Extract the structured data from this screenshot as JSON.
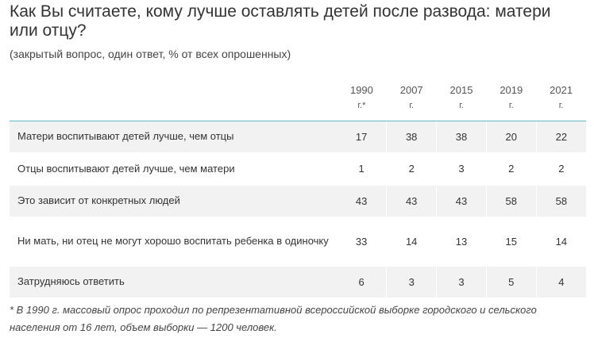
{
  "title": "Как Вы считаете, кому лучше оставлять детей после развода: матери или отцу?",
  "subtitle": "(закрытый вопрос, один ответ, % от всех опрошенных)",
  "columns": [
    {
      "year": "1990",
      "suffix": "г.*"
    },
    {
      "year": "2007",
      "suffix": "г."
    },
    {
      "year": "2015",
      "suffix": "г."
    },
    {
      "year": "2019",
      "suffix": "г."
    },
    {
      "year": "2021",
      "suffix": "г."
    }
  ],
  "rows": [
    {
      "label": "Матери воспитывают детей лучше, чем отцы",
      "values": [
        "17",
        "38",
        "38",
        "20",
        "22"
      ]
    },
    {
      "label": "Отцы воспитывают детей лучше, чем матери",
      "values": [
        "1",
        "2",
        "3",
        "2",
        "2"
      ]
    },
    {
      "label": "Это зависит от конкретных людей",
      "values": [
        "43",
        "43",
        "43",
        "58",
        "58"
      ]
    },
    {
      "label": "Ни мать, ни отец не могут хорошо воспитать ребенка в одиночку",
      "values": [
        "33",
        "14",
        "13",
        "15",
        "14"
      ]
    },
    {
      "label": "Затрудняюсь ответить",
      "values": [
        "6",
        "3",
        "3",
        "5",
        "4"
      ]
    }
  ],
  "footnote": "* В 1990 г. массовый опрос проходил по репрезентативной всероссийской выборке городского и сельского населения от 16 лет, объем выборки — 1200 человек.",
  "colors": {
    "header_rule": "#5fb7c4",
    "row_shade": "#f2f2f2",
    "text": "#333333"
  }
}
